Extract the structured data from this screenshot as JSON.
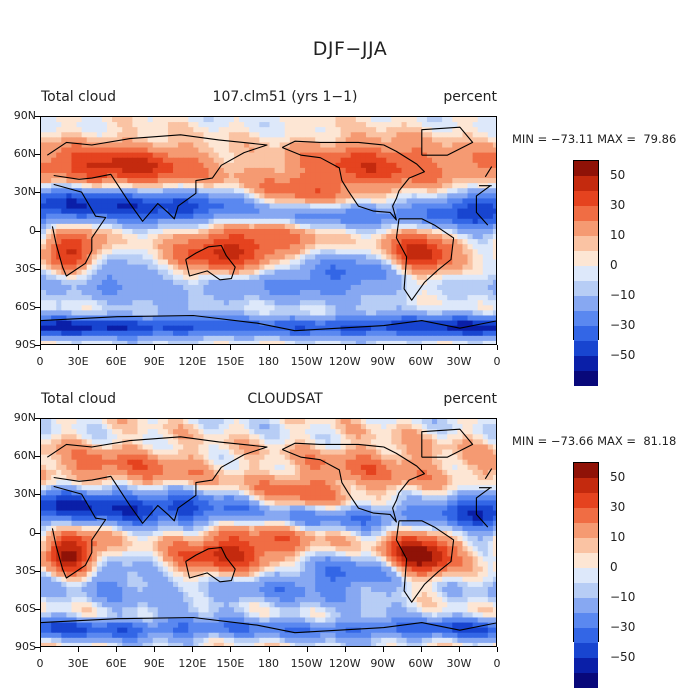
{
  "figure_title": "DJF−JJA",
  "panels": [
    {
      "left_label": "Total cloud",
      "center_label": "107.clm51 (yrs 1−1)",
      "right_label": "percent",
      "min_max": "MIN = −73.11 MAX =  79.86"
    },
    {
      "left_label": "Total cloud",
      "center_label": "CLOUDSAT",
      "right_label": "percent",
      "min_max": "MIN = −73.66 MAX =  81.18"
    }
  ],
  "colors": {
    "scale": [
      "#08087a",
      "#0a1fa8",
      "#1845d0",
      "#3366e6",
      "#5a88f0",
      "#87a8f2",
      "#b7cdf5",
      "#dde8fa",
      "#fde6d4",
      "#fac3a3",
      "#f59a72",
      "#f06d44",
      "#e5431f",
      "#c42a0e",
      "#8f1207"
    ],
    "coastline": "#000000"
  },
  "chart_data": [
    {
      "type": "heatmap",
      "title": "107.clm51 (yrs 1−1)",
      "variable": "Total cloud",
      "units": "percent",
      "xlabel": "",
      "ylabel": "",
      "x_ticks": [
        "0",
        "30E",
        "60E",
        "90E",
        "120E",
        "150E",
        "180",
        "150W",
        "120W",
        "90W",
        "60W",
        "30W",
        "0"
      ],
      "y_ticks": [
        "90N",
        "60N",
        "30N",
        "0",
        "30S",
        "60S",
        "90S"
      ],
      "xlim": [
        0,
        360
      ],
      "ylim": [
        -90,
        90
      ],
      "contour_levels": [
        -60,
        -50,
        -40,
        -30,
        -20,
        -10,
        -5,
        0,
        5,
        10,
        20,
        30,
        40,
        50,
        60
      ],
      "colorbar_labels": [
        "50",
        "30",
        "10",
        "0",
        "−10",
        "−30",
        "−50"
      ],
      "min": -73.11,
      "max": 79.86,
      "grid": false,
      "legend_position": "right"
    },
    {
      "type": "heatmap",
      "title": "CLOUDSAT",
      "variable": "Total cloud",
      "units": "percent",
      "xlabel": "",
      "ylabel": "",
      "x_ticks": [
        "0",
        "30E",
        "60E",
        "90E",
        "120E",
        "150E",
        "180",
        "150W",
        "120W",
        "90W",
        "60W",
        "30W",
        "0"
      ],
      "y_ticks": [
        "90N",
        "60N",
        "30N",
        "0",
        "30S",
        "60S",
        "90S"
      ],
      "xlim": [
        0,
        360
      ],
      "ylim": [
        -90,
        90
      ],
      "contour_levels": [
        -60,
        -50,
        -40,
        -30,
        -20,
        -10,
        -5,
        0,
        5,
        10,
        20,
        30,
        40,
        50,
        60
      ],
      "colorbar_labels": [
        "50",
        "30",
        "10",
        "0",
        "−10",
        "−30",
        "−50"
      ],
      "min": -73.66,
      "max": 81.18,
      "grid": false,
      "legend_position": "right"
    }
  ]
}
